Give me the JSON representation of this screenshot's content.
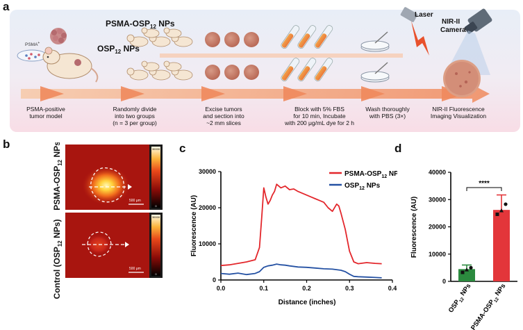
{
  "panels": {
    "a": "a",
    "b": "b",
    "c": "c",
    "d": "d"
  },
  "panel_a": {
    "group_psma": "PSMA-OSP",
    "group_psma_sub": "12",
    "group_psma_tail": " NPs",
    "group_osp": "OSP",
    "group_osp_sub": "12",
    "group_osp_tail": " NPs",
    "cell_label": "PSMA",
    "cell_label_sup": "+",
    "laser": "Laser",
    "camera_line1": "NIR-II",
    "camera_line2": "Camera",
    "steps": [
      {
        "line1": "PSMA-positive",
        "line2": "tumor model",
        "line3": ""
      },
      {
        "line1": "Randomly divide",
        "line2": "into two groups",
        "line3": "(n = 3 per group)"
      },
      {
        "line1": "Excise tumors",
        "line2": "and section into",
        "line3": "~2 mm slices"
      },
      {
        "line1": "Block with 5% FBS",
        "line2": "for 10 min, Incubate",
        "line3": "with 200 μg/mL dye for 2 h"
      },
      {
        "line1": "Wash thoroughly",
        "line2": "with PBS (3×)",
        "line3": ""
      },
      {
        "line1": "NIR-II Fluorescence",
        "line2": "Imaging Visualization",
        "line3": ""
      }
    ]
  },
  "panel_b": {
    "label_top": "PSMA-OSP",
    "label_top_sub": "12",
    "label_top_tail": " NPs",
    "label_bottom": "Control (OSP",
    "label_bottom_sub": "12",
    "label_bottom_tail": " NPs)",
    "scalebar": "500 μm",
    "colorbar_max": "30000",
    "colorbar_min": "0"
  },
  "chart_data": [
    {
      "type": "line",
      "panel": "c",
      "xlabel": "Distance (inches)",
      "ylabel": "Fluorescence (AU)",
      "xlim": [
        0.0,
        0.4
      ],
      "ylim": [
        0,
        30000
      ],
      "xticks": [
        "0.0",
        "0.1",
        "0.2",
        "0.3",
        "0.4"
      ],
      "yticks": [
        "0",
        "10000",
        "20000",
        "30000"
      ],
      "legend_placement": "top-right",
      "series": [
        {
          "name": "PSMA-OSP12 NPs",
          "legend_main": "PSMA-OSP",
          "legend_sub": "12",
          "legend_tail": " NPs",
          "color": "#e3262b",
          "x": [
            0.0,
            0.02,
            0.04,
            0.06,
            0.08,
            0.09,
            0.095,
            0.1,
            0.105,
            0.11,
            0.115,
            0.12,
            0.125,
            0.13,
            0.14,
            0.15,
            0.16,
            0.17,
            0.18,
            0.19,
            0.2,
            0.21,
            0.22,
            0.23,
            0.24,
            0.25,
            0.26,
            0.27,
            0.275,
            0.28,
            0.29,
            0.3,
            0.31,
            0.32,
            0.34,
            0.36,
            0.375
          ],
          "y": [
            4000,
            4200,
            4600,
            5000,
            5600,
            9000,
            17000,
            25500,
            23000,
            21000,
            22000,
            23500,
            24500,
            26500,
            25500,
            26000,
            25000,
            25200,
            24500,
            24000,
            23500,
            23000,
            22500,
            22000,
            21500,
            20000,
            19000,
            21000,
            20500,
            18500,
            14000,
            8000,
            5000,
            4500,
            4800,
            4600,
            4500
          ]
        },
        {
          "name": "OSP12 NPs",
          "legend_main": "OSP",
          "legend_sub": "12",
          "legend_tail": " NPs",
          "color": "#2451a3",
          "x": [
            0.0,
            0.02,
            0.04,
            0.06,
            0.08,
            0.09,
            0.1,
            0.11,
            0.12,
            0.13,
            0.14,
            0.15,
            0.16,
            0.18,
            0.2,
            0.22,
            0.24,
            0.26,
            0.28,
            0.29,
            0.3,
            0.31,
            0.32,
            0.34,
            0.36,
            0.375
          ],
          "y": [
            1800,
            1600,
            1900,
            1500,
            1800,
            2300,
            3500,
            3900,
            4100,
            4400,
            4200,
            4100,
            3900,
            3600,
            3500,
            3300,
            3100,
            3000,
            2700,
            2300,
            1600,
            1000,
            900,
            800,
            700,
            600
          ]
        }
      ]
    },
    {
      "type": "bar",
      "panel": "d",
      "ylabel": "Fluorescence (AU)",
      "ylim": [
        0,
        40000
      ],
      "yticks": [
        "0",
        "10000",
        "20000",
        "30000",
        "40000"
      ],
      "significance": "****",
      "categories": [
        "OSP12 NPs",
        "PSMA-OSP12 NPs"
      ],
      "category_labels": [
        {
          "main": "OSP",
          "sub": "12",
          "tail": " NPs"
        },
        {
          "main": "PSMA-OSP",
          "sub": "12",
          "tail": " NPs"
        }
      ],
      "values": [
        4500,
        26200
      ],
      "errors": [
        1500,
        5500
      ],
      "colors": [
        "#2b8a3e",
        "#e3363a"
      ],
      "points": [
        [
          3300,
          4300,
          5000
        ],
        [
          24600,
          26000,
          28300
        ]
      ]
    }
  ]
}
